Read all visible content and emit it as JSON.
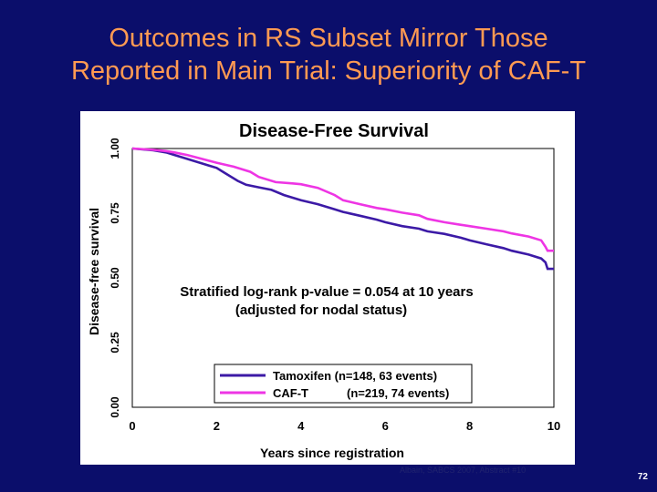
{
  "slide": {
    "title_line1": "Outcomes in RS Subset Mirror Those",
    "title_line2": "Reported in Main Trial: Superiority of CAF-T",
    "citation": "Albain, SABCS 2007, Abstract #10",
    "page_number": "72",
    "colors": {
      "background": "#0b0e6b",
      "title": "#ff9a52",
      "panel": "#ffffff",
      "plot": "#ffffff",
      "axis_text": "#ffffff"
    }
  },
  "chart_data": {
    "type": "line",
    "title": "Disease-Free Survival",
    "xlabel": "Years since registration",
    "ylabel": "Disease-free survival",
    "xlim": [
      0,
      10
    ],
    "ylim": [
      0,
      1
    ],
    "xticks": [
      "0",
      "2",
      "4",
      "6",
      "8",
      "10"
    ],
    "yticks": [
      "0.00",
      "0.25",
      "0.50",
      "0.75",
      "1.00"
    ],
    "annotation_line1": "Stratified log-rank p-value = 0.054 at 10 years",
    "annotation_line2": "(adjusted for nodal status)",
    "series": [
      {
        "name": "Tamoxifen",
        "legend_label": "Tamoxifen (n=148, 63 events)",
        "color": "#3c1aa6",
        "x": [
          0,
          0.5,
          0.8,
          1.0,
          1.3,
          1.6,
          1.8,
          2.0,
          2.2,
          2.5,
          2.7,
          3.0,
          3.3,
          3.6,
          4.0,
          4.4,
          4.8,
          5.0,
          5.4,
          5.8,
          6.0,
          6.4,
          6.8,
          7.0,
          7.4,
          7.8,
          8.0,
          8.4,
          8.8,
          9.0,
          9.4,
          9.7,
          9.8,
          9.85,
          10.0
        ],
        "y": [
          1.0,
          0.993,
          0.985,
          0.975,
          0.96,
          0.945,
          0.935,
          0.925,
          0.905,
          0.875,
          0.86,
          0.85,
          0.84,
          0.82,
          0.8,
          0.785,
          0.765,
          0.755,
          0.74,
          0.725,
          0.715,
          0.7,
          0.69,
          0.68,
          0.67,
          0.655,
          0.645,
          0.63,
          0.615,
          0.605,
          0.59,
          0.575,
          0.56,
          0.535,
          0.535
        ]
      },
      {
        "name": "CAF-T",
        "legend_label_name": "CAF-T",
        "legend_label_detail": "(n=219, 74 events)",
        "color": "#ee35e4",
        "x": [
          0,
          0.5,
          0.8,
          1.0,
          1.3,
          1.6,
          2.0,
          2.4,
          2.8,
          3.0,
          3.4,
          3.8,
          4.0,
          4.4,
          4.8,
          5.0,
          5.4,
          5.8,
          6.0,
          6.4,
          6.8,
          7.0,
          7.4,
          7.8,
          8.0,
          8.4,
          8.8,
          9.0,
          9.4,
          9.7,
          9.8,
          9.85,
          10.0
        ],
        "y": [
          1.0,
          0.995,
          0.99,
          0.985,
          0.975,
          0.962,
          0.945,
          0.93,
          0.91,
          0.89,
          0.87,
          0.865,
          0.862,
          0.848,
          0.82,
          0.8,
          0.785,
          0.77,
          0.765,
          0.752,
          0.742,
          0.728,
          0.715,
          0.705,
          0.7,
          0.69,
          0.68,
          0.672,
          0.66,
          0.645,
          0.62,
          0.605,
          0.605
        ]
      }
    ]
  }
}
